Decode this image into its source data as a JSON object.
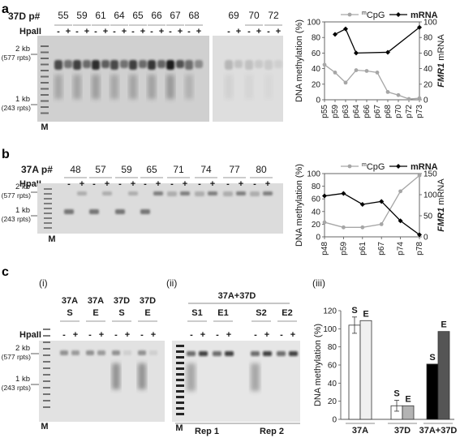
{
  "panel_a": {
    "label": "a",
    "series_label": "37D p#",
    "passages": [
      "55",
      "59",
      "61",
      "64",
      "65",
      "66",
      "67",
      "68",
      "69",
      "70",
      "72"
    ],
    "hpa": "HpaII",
    "minus": "-",
    "plus": "+",
    "marker_2kb": "2 kb",
    "marker_2kb_rpts": "(577 rpts)",
    "marker_1kb": "1 kb",
    "marker_1kb_rpts": "(243 rpts)",
    "lane_m": "M"
  },
  "panel_b": {
    "label": "b",
    "series_label": "37A p#",
    "passages": [
      "48",
      "57",
      "59",
      "65",
      "71",
      "74",
      "77",
      "80"
    ],
    "hpa": "HpaII",
    "minus": "-",
    "plus": "+",
    "marker_2kb": "2 kb",
    "marker_2kb_rpts": "(577 rpts)",
    "marker_1kb": "1 kb",
    "marker_1kb_rpts": "(243 rpts)",
    "lane_m": "M"
  },
  "panel_c": {
    "label": "c",
    "sub_i": "(i)",
    "sub_ii": "(ii)",
    "sub_iii": "(iii)",
    "groups_i": [
      {
        "top": "37A",
        "bottom": "S"
      },
      {
        "top": "37A",
        "bottom": "E"
      },
      {
        "top": "37D",
        "bottom": "S"
      },
      {
        "top": "37D",
        "bottom": "E"
      }
    ],
    "header_ii": "37A+37D",
    "groups_ii": [
      "S1",
      "E1",
      "S2",
      "E2"
    ],
    "rep1": "Rep 1",
    "rep2": "Rep 2",
    "hpa": "HpaII",
    "minus": "-",
    "plus": "+",
    "marker_2kb": "2 kb",
    "marker_2kb_rpts": "(577 rpts)",
    "marker_1kb": "1 kb",
    "marker_1kb_rpts": "(243 rpts)",
    "lane_m": "M"
  },
  "chart_data": [
    {
      "type": "line",
      "panel": "a",
      "ylabel_left": "DNA methylation (%)",
      "ylabel_right": "FMR1 mRNA",
      "x": [
        "p55",
        "p59",
        "p63",
        "p64",
        "p66",
        "p67",
        "p68",
        "p70",
        "p72",
        "p73"
      ],
      "ylim_left": [
        0,
        100
      ],
      "ylim_right": [
        0,
        100
      ],
      "yticks": [
        "0",
        "20",
        "40",
        "60",
        "80",
        "100"
      ],
      "legend": {
        "cpg_prefix": "m",
        "cpg": "CpG",
        "mrna": "mRNA"
      },
      "series": [
        {
          "name": "mCpG",
          "axis": "left",
          "color": "#a6a6a6",
          "values": [
            45,
            35,
            22,
            38,
            37,
            35,
            10,
            6,
            1,
            2
          ]
        },
        {
          "name": "mRNA",
          "axis": "right",
          "color": "#000000",
          "values": [
            null,
            84,
            91,
            60,
            null,
            null,
            61,
            null,
            null,
            93
          ]
        }
      ]
    },
    {
      "type": "line",
      "panel": "b",
      "ylabel_left": "DNA methylation (%)",
      "ylabel_right": "FMR1 mRNA",
      "x": [
        "p48",
        "p59",
        "p61",
        "p67",
        "p74",
        "p78"
      ],
      "ylim_left": [
        0,
        100
      ],
      "ylim_right": [
        0,
        150
      ],
      "yticks_left": [
        "0",
        "20",
        "40",
        "60",
        "80",
        "100"
      ],
      "yticks_right": [
        "0",
        "50",
        "100",
        "150"
      ],
      "legend": {
        "cpg_prefix": "m",
        "cpg": "CpG",
        "mrna": "mRNA"
      },
      "series": [
        {
          "name": "mCpG",
          "axis": "left",
          "color": "#a6a6a6",
          "values": [
            23,
            15,
            15,
            20,
            72,
            97
          ]
        },
        {
          "name": "mRNA",
          "axis": "right",
          "color": "#000000",
          "values": [
            97,
            103,
            77,
            84,
            38,
            5
          ]
        }
      ]
    },
    {
      "type": "bar",
      "panel": "c-iii",
      "ylabel": "DNA methylation (%)",
      "ylim": [
        0,
        120
      ],
      "yticks": [
        "0",
        "20",
        "40",
        "60",
        "80",
        "100",
        "120"
      ],
      "categories": [
        "37A",
        "37D",
        "37A+37D"
      ],
      "series": [
        {
          "name": "S",
          "values": [
            104,
            15,
            61
          ],
          "errors": [
            9,
            6,
            0
          ],
          "colors": [
            "#ffffff",
            "#ffffff",
            "#000000"
          ]
        },
        {
          "name": "E",
          "values": [
            109,
            15,
            97
          ],
          "errors": [
            0,
            0,
            0
          ],
          "colors": [
            "#f0f0f0",
            "#b3b3b3",
            "#555555"
          ]
        }
      ]
    }
  ]
}
